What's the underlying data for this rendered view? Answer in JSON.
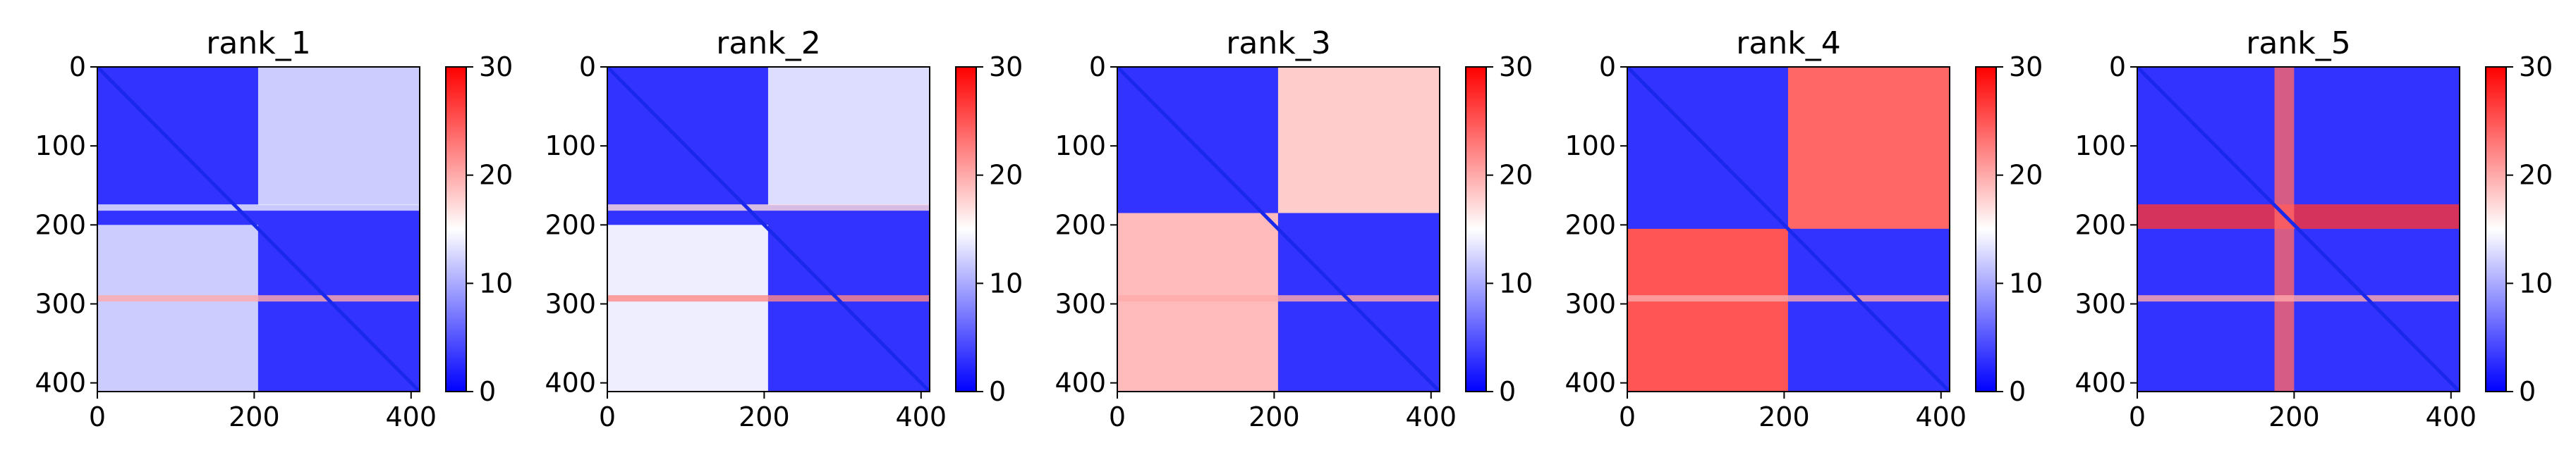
{
  "chart_data": [
    {
      "type": "heatmap",
      "title": "rank_1",
      "x_ticks": [
        0,
        200,
        400
      ],
      "y_ticks": [
        0,
        100,
        200,
        300,
        400
      ],
      "xlim": [
        0,
        411
      ],
      "ylim": [
        411,
        0
      ],
      "colorbar": {
        "min": 0,
        "max": 30,
        "ticks": [
          0,
          10,
          20,
          30
        ],
        "colormap": "bwr"
      },
      "blocks": [
        {
          "x": [
            0,
            205
          ],
          "y": [
            0,
            175
          ],
          "value": 3
        },
        {
          "x": [
            205,
            411
          ],
          "y": [
            0,
            175
          ],
          "value": 12
        },
        {
          "x": [
            0,
            205
          ],
          "y": [
            200,
            411
          ],
          "value": 12
        },
        {
          "x": [
            205,
            411
          ],
          "y": [
            200,
            411
          ],
          "value": 3
        }
      ],
      "bands": [
        {
          "axis": "row",
          "range": [
            174,
            182
          ],
          "value": 14
        },
        {
          "axis": "row",
          "range": [
            289,
            297
          ],
          "value": 20
        }
      ]
    },
    {
      "type": "heatmap",
      "title": "rank_2",
      "x_ticks": [
        0,
        200,
        400
      ],
      "y_ticks": [
        0,
        100,
        200,
        300,
        400
      ],
      "xlim": [
        0,
        411
      ],
      "ylim": [
        411,
        0
      ],
      "colorbar": {
        "min": 0,
        "max": 30,
        "ticks": [
          0,
          10,
          20,
          30
        ],
        "colormap": "bwr"
      },
      "blocks": [
        {
          "x": [
            0,
            205
          ],
          "y": [
            0,
            175
          ],
          "value": 3
        },
        {
          "x": [
            205,
            411
          ],
          "y": [
            0,
            175
          ],
          "value": 13
        },
        {
          "x": [
            0,
            205
          ],
          "y": [
            200,
            411
          ],
          "value": 14
        },
        {
          "x": [
            205,
            411
          ],
          "y": [
            200,
            411
          ],
          "value": 3
        }
      ],
      "bands": [
        {
          "axis": "row",
          "range": [
            174,
            182
          ],
          "value": 17
        },
        {
          "axis": "row",
          "range": [
            289,
            297
          ],
          "value": 22
        }
      ]
    },
    {
      "type": "heatmap",
      "title": "rank_3",
      "x_ticks": [
        0,
        200,
        400
      ],
      "y_ticks": [
        0,
        100,
        200,
        300,
        400
      ],
      "xlim": [
        0,
        411
      ],
      "ylim": [
        411,
        0
      ],
      "colorbar": {
        "min": 0,
        "max": 30,
        "ticks": [
          0,
          10,
          20,
          30
        ],
        "colormap": "bwr"
      },
      "blocks": [
        {
          "x": [
            0,
            205
          ],
          "y": [
            0,
            185
          ],
          "value": 3
        },
        {
          "x": [
            205,
            411
          ],
          "y": [
            0,
            185
          ],
          "value": 18
        },
        {
          "x": [
            0,
            205
          ],
          "y": [
            185,
            411
          ],
          "value": 19
        },
        {
          "x": [
            205,
            411
          ],
          "y": [
            185,
            411
          ],
          "value": 3
        }
      ],
      "bands": [
        {
          "axis": "row",
          "range": [
            289,
            297
          ],
          "value": 20
        }
      ]
    },
    {
      "type": "heatmap",
      "title": "rank_4",
      "x_ticks": [
        0,
        200,
        400
      ],
      "y_ticks": [
        0,
        100,
        200,
        300,
        400
      ],
      "xlim": [
        0,
        411
      ],
      "ylim": [
        411,
        0
      ],
      "colorbar": {
        "min": 0,
        "max": 30,
        "ticks": [
          0,
          10,
          20,
          30
        ],
        "colormap": "bwr"
      },
      "blocks": [
        {
          "x": [
            0,
            205
          ],
          "y": [
            0,
            205
          ],
          "value": 3
        },
        {
          "x": [
            205,
            411
          ],
          "y": [
            0,
            205
          ],
          "value": 24
        },
        {
          "x": [
            0,
            205
          ],
          "y": [
            205,
            411
          ],
          "value": 25
        },
        {
          "x": [
            205,
            411
          ],
          "y": [
            205,
            411
          ],
          "value": 3
        }
      ],
      "bands": [
        {
          "axis": "row",
          "range": [
            289,
            297
          ],
          "value": 20
        }
      ]
    },
    {
      "type": "heatmap",
      "title": "rank_5",
      "x_ticks": [
        0,
        200,
        400
      ],
      "y_ticks": [
        0,
        100,
        200,
        300,
        400
      ],
      "xlim": [
        0,
        411
      ],
      "ylim": [
        411,
        0
      ],
      "colorbar": {
        "min": 0,
        "max": 30,
        "ticks": [
          0,
          10,
          20,
          30
        ],
        "colormap": "bwr"
      },
      "blocks": [
        {
          "x": [
            0,
            411
          ],
          "y": [
            0,
            411
          ],
          "value": 3
        }
      ],
      "bands": [
        {
          "axis": "row",
          "range": [
            174,
            205
          ],
          "value": 27
        },
        {
          "axis": "col",
          "range": [
            175,
            200
          ],
          "value": 24
        },
        {
          "axis": "row",
          "range": [
            289,
            297
          ],
          "value": 20
        }
      ]
    }
  ]
}
